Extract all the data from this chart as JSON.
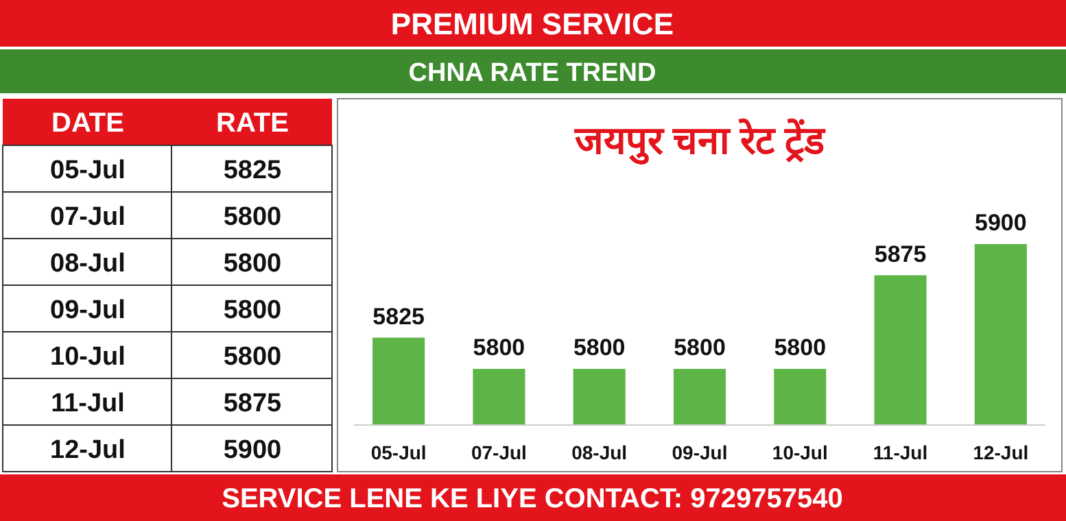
{
  "chart_data": [
    {
      "type": "other",
      "annotations": [
        "DATE",
        "RATE",
        "05-Jul",
        "5825",
        "07-Jul",
        "5800",
        "08-Jul",
        "5800",
        "09-Jul",
        "5800",
        "10-Jul",
        "5800",
        "11-Jul",
        "5875",
        "12-Jul",
        "5900"
      ]
    },
    {
      "type": "bar",
      "title": "जयपुर चना रेट ट्रेंड",
      "subtitle": "CHNA RATE TREND",
      "annotations": [
        "PREMIUM SERVICE",
        "SERVICE LENE KE LIYE CONTACT: 9729757540"
      ],
      "categories": [
        "05-Jul",
        "07-Jul",
        "08-Jul",
        "09-Jul",
        "10-Jul",
        "11-Jul",
        "12-Jul"
      ],
      "values": [
        5825,
        5800,
        5800,
        5800,
        5800,
        5875,
        5900
      ],
      "color": "#5db547",
      "ylim": [
        5755,
        5900
      ],
      "data_labels": true
    }
  ]
}
